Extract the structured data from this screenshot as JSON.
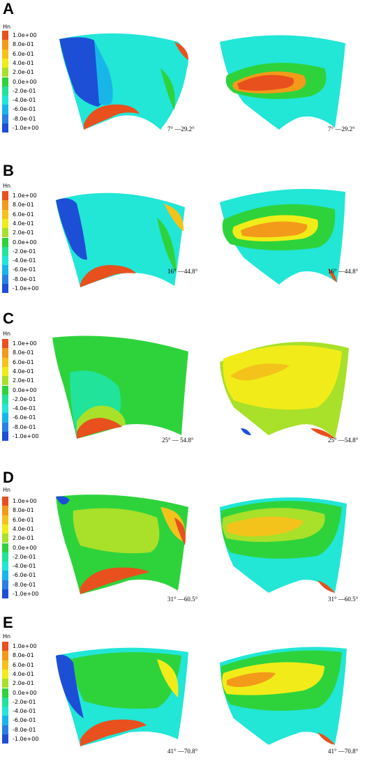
{
  "colorbar": {
    "title": "Hn",
    "labels": [
      "1.0e+00",
      "8.0e-01",
      "6.0e-01",
      "4.0e-01",
      "2.0e-01",
      "0.0e+00",
      "-2.0e-01",
      "-4.0e-01",
      "-6.0e-01",
      "-8.0e-01",
      "-1.0e+00"
    ],
    "colors": [
      "#e8501e",
      "#f39a1a",
      "#f3c31c",
      "#f1ec19",
      "#a8e02a",
      "#2ed33c",
      "#21e39a",
      "#22e6d6",
      "#18b6e8",
      "#2a7fe5",
      "#1d4fd6"
    ]
  },
  "panels": [
    {
      "letter": "A",
      "left_angle": "7° —29.2°",
      "right_angle": "7° —29.2°"
    },
    {
      "letter": "B",
      "left_angle": "16° —44.8°",
      "right_angle": "16° —44.8°"
    },
    {
      "letter": "C",
      "left_angle": "25° — 54.8°",
      "right_angle": "25° —54.8°"
    },
    {
      "letter": "D",
      "left_angle": "31° —60.5°",
      "right_angle": "31° —60.5°"
    },
    {
      "letter": "E",
      "left_angle": "41° —70.8°",
      "right_angle": "41° —70.8°"
    }
  ]
}
